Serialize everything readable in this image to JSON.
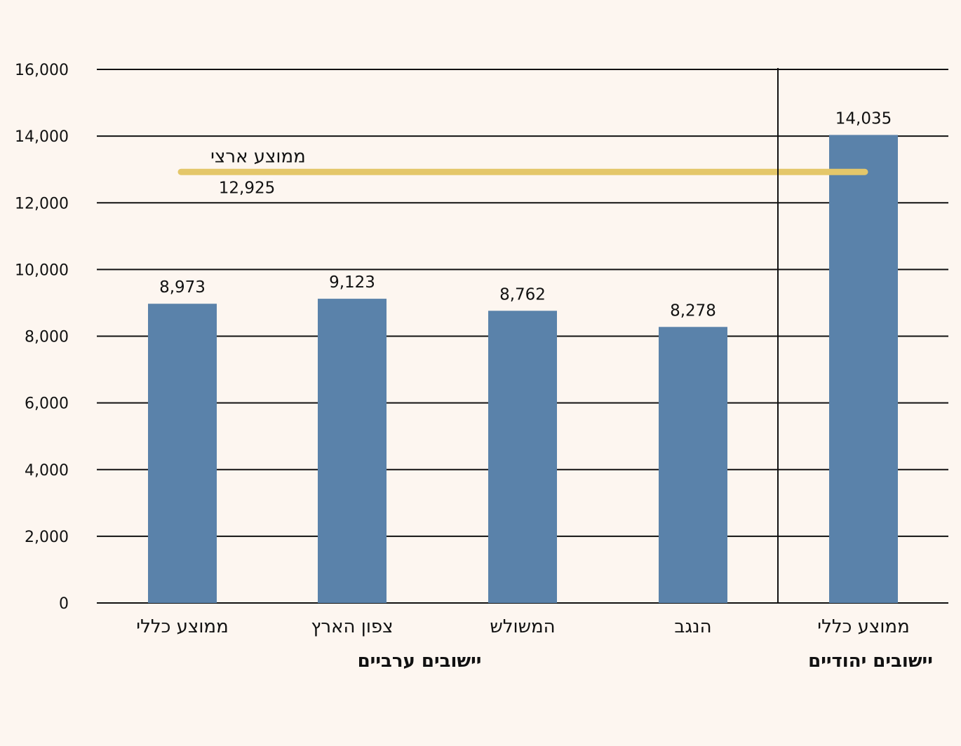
{
  "chart_data": {
    "type": "bar",
    "categories": [
      "ממוצע כללי",
      "צפון הארץ",
      "המשולש",
      "הנגב",
      "ממוצע כללי"
    ],
    "values": [
      8973,
      9123,
      8762,
      8278,
      14035
    ],
    "value_labels": [
      "8,973",
      "9,123",
      "8,762",
      "8,278",
      "14,035"
    ],
    "ylim": [
      0,
      16000
    ],
    "yticks": [
      0,
      2000,
      4000,
      6000,
      8000,
      10000,
      12000,
      14000,
      16000
    ],
    "ytick_labels": [
      "0",
      "2,000",
      "4,000",
      "6,000",
      "8,000",
      "10,000",
      "12,000",
      "14,000",
      "16,000"
    ],
    "grid": true,
    "groups": [
      {
        "label": "יישובים ערביים",
        "categories": [
          0,
          1,
          2,
          3
        ]
      },
      {
        "label": "יישובים יהודיים",
        "categories": [
          4
        ]
      }
    ],
    "reference_line": {
      "name": "ממוצע ארצי",
      "value": 12925,
      "value_label": "12,925"
    },
    "colors": {
      "bar": "#5a82aa",
      "reference_line": "#e4c76a",
      "grid": "#111111",
      "background": "#fdf6f0"
    }
  }
}
